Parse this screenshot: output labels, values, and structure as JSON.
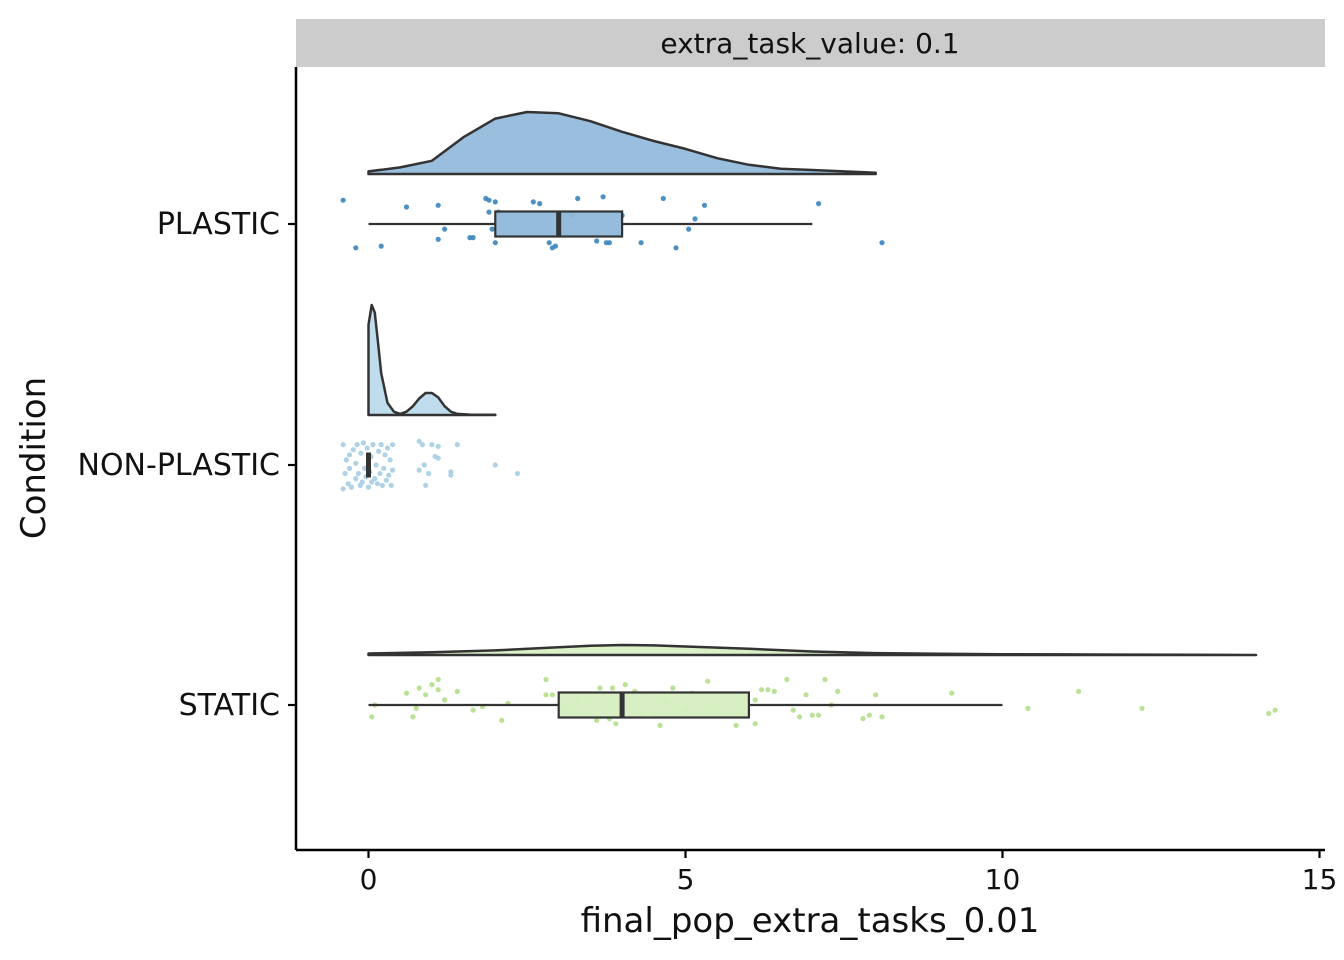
{
  "chart_data": {
    "type": "raincloud",
    "facet_label": "extra_task_value: 0.1",
    "xlabel": "final_pop_extra_tasks_0.01",
    "ylabel": "Condition",
    "xlim": [
      -1.15,
      15.05
    ],
    "x_ticks": [
      0,
      5,
      10,
      15
    ],
    "grid": false,
    "legend": "none",
    "categories": [
      "PLASTIC",
      "NON-PLASTIC",
      "STATIC"
    ],
    "groups": [
      {
        "name": "PLASTIC",
        "color": "#3a85bd",
        "fill": "#8fb8da",
        "box": {
          "q1": 2,
          "median": 3,
          "q3": 4,
          "whisker_low": 0,
          "whisker_high": 7
        },
        "density_range": [
          0,
          8
        ],
        "density": [
          [
            0,
            0.02
          ],
          [
            0.5,
            0.05
          ],
          [
            1,
            0.1
          ],
          [
            1.5,
            0.28
          ],
          [
            2,
            0.42
          ],
          [
            2.5,
            0.47
          ],
          [
            3,
            0.46
          ],
          [
            3.5,
            0.4
          ],
          [
            4,
            0.32
          ],
          [
            4.5,
            0.25
          ],
          [
            5,
            0.19
          ],
          [
            5.5,
            0.12
          ],
          [
            6,
            0.07
          ],
          [
            6.5,
            0.04
          ],
          [
            7,
            0.03
          ],
          [
            7.5,
            0.02
          ],
          [
            8,
            0.01
          ]
        ],
        "points": [
          [
            -0.4,
            -0.14
          ],
          [
            -0.2,
            0.14
          ],
          [
            0.2,
            0.13
          ],
          [
            0.6,
            -0.1
          ],
          [
            1.1,
            -0.11
          ],
          [
            1.1,
            0.09
          ],
          [
            1.2,
            0.03
          ],
          [
            1.6,
            0.08
          ],
          [
            1.65,
            0.08
          ],
          [
            1.85,
            -0.15
          ],
          [
            1.9,
            -0.14
          ],
          [
            1.95,
            0.03
          ],
          [
            1.9,
            -0.07
          ],
          [
            2.0,
            0.11
          ],
          [
            2.05,
            -0.07
          ],
          [
            2.0,
            -0.13
          ],
          [
            2.6,
            -0.13
          ],
          [
            2.7,
            -0.12
          ],
          [
            2.85,
            0.11
          ],
          [
            2.95,
            0.13
          ],
          [
            2.9,
            0.14
          ],
          [
            3.0,
            0.04
          ],
          [
            3.2,
            -0.05
          ],
          [
            3.3,
            -0.15
          ],
          [
            3.6,
            0.1
          ],
          [
            3.7,
            -0.16
          ],
          [
            3.75,
            0.11
          ],
          [
            3.8,
            0.11
          ],
          [
            4.0,
            -0.05
          ],
          [
            4.3,
            0.11
          ],
          [
            4.65,
            -0.15
          ],
          [
            4.85,
            0.14
          ],
          [
            5.05,
            0.03
          ],
          [
            5.15,
            -0.03
          ],
          [
            5.3,
            -0.11
          ],
          [
            7.1,
            -0.12
          ],
          [
            8.1,
            0.11
          ]
        ]
      },
      {
        "name": "NON-PLASTIC",
        "color": "#a6cde3",
        "fill": "#b8d8ea",
        "box": {
          "q1": 0,
          "median": 0,
          "q3": 0,
          "whisker_low": 0,
          "whisker_high": 0
        },
        "density_range": [
          0,
          2
        ],
        "density": [
          [
            0,
            0.82
          ],
          [
            0.05,
            1.0
          ],
          [
            0.1,
            0.93
          ],
          [
            0.15,
            0.66
          ],
          [
            0.2,
            0.38
          ],
          [
            0.3,
            0.11
          ],
          [
            0.4,
            0.03
          ],
          [
            0.5,
            0.01
          ],
          [
            0.6,
            0.03
          ],
          [
            0.7,
            0.08
          ],
          [
            0.8,
            0.15
          ],
          [
            0.9,
            0.2
          ],
          [
            1.0,
            0.2
          ],
          [
            1.1,
            0.16
          ],
          [
            1.2,
            0.08
          ],
          [
            1.3,
            0.03
          ],
          [
            1.4,
            0.01
          ],
          [
            1.6,
            0.004
          ],
          [
            1.8,
            0.002
          ],
          [
            2.0,
            0.002
          ]
        ],
        "points": [
          [
            -0.4,
            -0.12
          ],
          [
            -0.4,
            0.14
          ],
          [
            -0.37,
            0.05
          ],
          [
            -0.35,
            -0.03
          ],
          [
            -0.32,
            0.11
          ],
          [
            -0.3,
            -0.06
          ],
          [
            -0.3,
            0.02
          ],
          [
            -0.27,
            0.13
          ],
          [
            -0.24,
            -0.09
          ],
          [
            -0.2,
            0.08
          ],
          [
            -0.2,
            -0.01
          ],
          [
            -0.18,
            -0.12
          ],
          [
            -0.16,
            0.05
          ],
          [
            -0.13,
            0.12
          ],
          [
            -0.12,
            -0.07
          ],
          [
            -0.1,
            0.1
          ],
          [
            -0.08,
            -0.13
          ],
          [
            -0.06,
            0.02
          ],
          [
            -0.04,
            0.07
          ],
          [
            -0.02,
            -0.1
          ],
          [
            0.0,
            0.13
          ],
          [
            0.02,
            0.04
          ],
          [
            0.04,
            -0.05
          ],
          [
            0.05,
            0.1
          ],
          [
            0.07,
            -0.12
          ],
          [
            0.1,
            0.08
          ],
          [
            0.12,
            0.0
          ],
          [
            0.14,
            0.11
          ],
          [
            0.16,
            -0.08
          ],
          [
            0.18,
            0.05
          ],
          [
            0.2,
            -0.12
          ],
          [
            0.22,
            0.12
          ],
          [
            0.24,
            0.02
          ],
          [
            0.26,
            -0.06
          ],
          [
            0.28,
            0.09
          ],
          [
            0.3,
            -0.1
          ],
          [
            0.32,
            0.06
          ],
          [
            0.34,
            -0.03
          ],
          [
            0.36,
            0.12
          ],
          [
            0.38,
            -0.12
          ],
          [
            0.38,
            0.03
          ],
          [
            0.8,
            -0.14
          ],
          [
            0.8,
            0.03
          ],
          [
            0.85,
            -0.12
          ],
          [
            0.88,
            0.0
          ],
          [
            0.9,
            0.12
          ],
          [
            0.95,
            0.05
          ],
          [
            1.0,
            -0.12
          ],
          [
            1.05,
            -0.05
          ],
          [
            1.1,
            -0.11
          ],
          [
            1.1,
            -0.04
          ],
          [
            1.3,
            0.04
          ],
          [
            1.3,
            0.06
          ],
          [
            1.4,
            -0.12
          ],
          [
            2.0,
            0.0
          ],
          [
            2.35,
            0.05
          ]
        ]
      },
      {
        "name": "STATIC",
        "color": "#b2de8a",
        "fill": "#d6eec1",
        "box": {
          "q1": 3,
          "median": 4,
          "q3": 6,
          "whisker_low": 0,
          "whisker_high": 10
        },
        "density_range": [
          0,
          14
        ],
        "density": [
          [
            0,
            0.04
          ],
          [
            1,
            0.07
          ],
          [
            2,
            0.12
          ],
          [
            3,
            0.2
          ],
          [
            3.5,
            0.24
          ],
          [
            4,
            0.26
          ],
          [
            4.5,
            0.25
          ],
          [
            5,
            0.22
          ],
          [
            6,
            0.16
          ],
          [
            7,
            0.09
          ],
          [
            8,
            0.05
          ],
          [
            9,
            0.03
          ],
          [
            10,
            0.02
          ],
          [
            11,
            0.015
          ],
          [
            12,
            0.01
          ],
          [
            13,
            0.005
          ],
          [
            14,
            0.0
          ]
        ],
        "points": [
          [
            0.05,
            0.07
          ],
          [
            0.1,
            0.0
          ],
          [
            0.6,
            -0.07
          ],
          [
            0.7,
            0.07
          ],
          [
            0.75,
            0.02
          ],
          [
            0.8,
            -0.1
          ],
          [
            0.9,
            -0.06
          ],
          [
            1.0,
            -0.12
          ],
          [
            1.1,
            -0.15
          ],
          [
            1.1,
            -0.09
          ],
          [
            1.2,
            -0.03
          ],
          [
            1.4,
            -0.08
          ],
          [
            1.65,
            0.03
          ],
          [
            1.8,
            0.01
          ],
          [
            2.1,
            0.09
          ],
          [
            2.2,
            -0.01
          ],
          [
            2.8,
            -0.15
          ],
          [
            2.8,
            -0.06
          ],
          [
            2.9,
            -0.06
          ],
          [
            3.1,
            0.02
          ],
          [
            3.3,
            -0.04
          ],
          [
            3.6,
            0.09
          ],
          [
            3.65,
            -0.1
          ],
          [
            3.8,
            0.08
          ],
          [
            3.85,
            -0.1
          ],
          [
            3.9,
            0.11
          ],
          [
            4.0,
            -0.05
          ],
          [
            4.05,
            -0.12
          ],
          [
            4.2,
            -0.08
          ],
          [
            4.3,
            0.05
          ],
          [
            4.4,
            -0.06
          ],
          [
            4.5,
            0.05
          ],
          [
            4.6,
            0.12
          ],
          [
            4.7,
            -0.02
          ],
          [
            4.8,
            -0.1
          ],
          [
            5.0,
            0.03
          ],
          [
            5.1,
            -0.07
          ],
          [
            5.3,
            0.0
          ],
          [
            5.35,
            -0.14
          ],
          [
            5.5,
            0.04
          ],
          [
            5.8,
            0.12
          ],
          [
            6.1,
            -0.03
          ],
          [
            6.1,
            0.11
          ],
          [
            6.2,
            -0.09
          ],
          [
            6.3,
            -0.09
          ],
          [
            6.4,
            -0.08
          ],
          [
            6.6,
            -0.15
          ],
          [
            6.7,
            0.03
          ],
          [
            6.8,
            0.07
          ],
          [
            6.9,
            -0.06
          ],
          [
            7.0,
            0.06
          ],
          [
            7.1,
            0.06
          ],
          [
            7.2,
            -0.15
          ],
          [
            7.3,
            0.0
          ],
          [
            7.4,
            -0.08
          ],
          [
            7.8,
            0.08
          ],
          [
            7.9,
            0.06
          ],
          [
            8.0,
            -0.06
          ],
          [
            8.1,
            0.07
          ],
          [
            9.2,
            -0.07
          ],
          [
            10.4,
            0.02
          ],
          [
            11.2,
            -0.08
          ],
          [
            12.2,
            0.02
          ],
          [
            14.2,
            0.05
          ],
          [
            14.3,
            0.03
          ]
        ]
      }
    ]
  }
}
